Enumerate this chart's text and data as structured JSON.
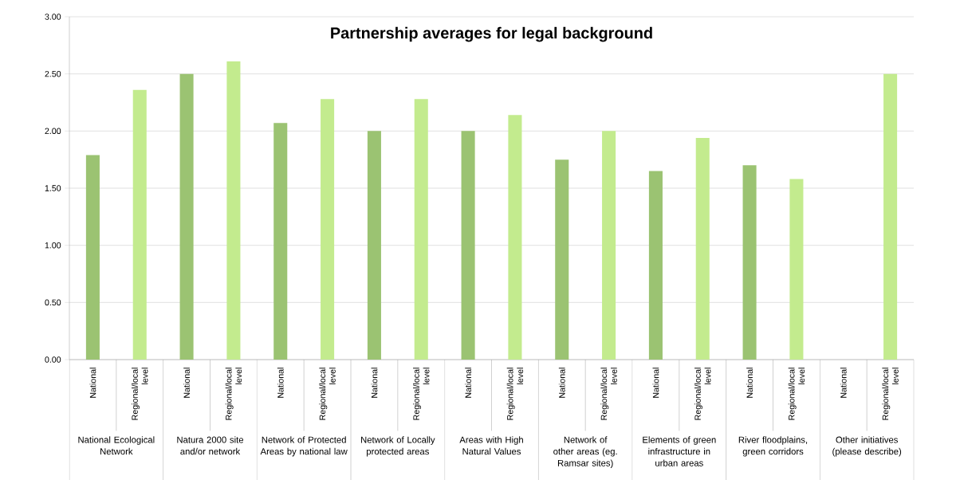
{
  "chart_data": {
    "type": "bar",
    "title": "Partnership averages for legal background",
    "categories": [
      "National Ecological Network",
      "Natura 2000 site and/or network",
      "Network of Protected Areas by national law",
      "Network of Locally protected areas",
      "Areas with High Natural Values",
      "Network of other areas (eg. Ramsar sites)",
      "Elements of green infrastructure in urban areas",
      "River floodplains, green corridors",
      "Other initiatives (please describe)"
    ],
    "series": [
      {
        "name": "National",
        "color": "#9bc372",
        "values": [
          1.79,
          2.5,
          2.07,
          2.0,
          2.0,
          1.75,
          1.65,
          1.7,
          null
        ]
      },
      {
        "name": "Regional/local level",
        "color": "#c3eb8e",
        "values": [
          2.36,
          2.61,
          2.28,
          2.28,
          2.14,
          2.0,
          1.94,
          1.58,
          2.5
        ]
      }
    ],
    "ylim": [
      0,
      3
    ],
    "yticks": [
      {
        "value": 0,
        "label": "0.00"
      },
      {
        "value": 0.5,
        "label": "0.50"
      },
      {
        "value": 1,
        "label": "1.00"
      },
      {
        "value": 1.5,
        "label": "1.50"
      },
      {
        "value": 2,
        "label": "2.00"
      },
      {
        "value": 2.5,
        "label": "2.50"
      },
      {
        "value": 3,
        "label": "3.00"
      }
    ],
    "grid": "y"
  }
}
